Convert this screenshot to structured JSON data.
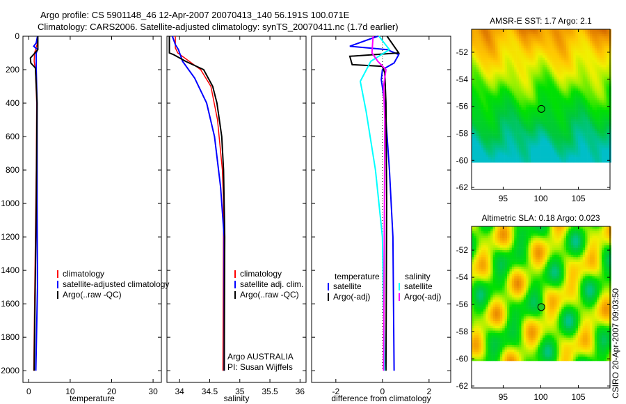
{
  "title": {
    "line1": "Argo profile: CS 5901148_46 12-Apr-2007 20070413_140 56.191S 100.071E",
    "line2": "Climatology: CARS2006. Satellite-adjusted climatology: synTS_20070411.nc (1.7d earlier)"
  },
  "footer_stamp": "CSIRO 20-Apr-2007 09:03:50",
  "chart_data": [
    {
      "type": "line",
      "id": "temperature",
      "xlabel": "temperature",
      "ylabel": "",
      "xlim": [
        -1.4,
        32
      ],
      "ylim": [
        0,
        2070
      ],
      "y_reversed": true,
      "xticks": [
        0,
        10,
        20,
        30
      ],
      "yticks": [
        0,
        200,
        400,
        600,
        800,
        1000,
        1200,
        1400,
        1600,
        1800,
        2000
      ],
      "legend": [
        "climatology",
        "satellite-adjusted climatology",
        "Argo(..raw -QC)"
      ],
      "series": [
        {
          "name": "climatology",
          "color": "#ff0000",
          "depth": [
            0,
            50,
            100,
            150,
            200,
            400,
            800,
            1200,
            1600,
            2000
          ],
          "values": [
            2.1,
            2.0,
            1.4,
            1.3,
            1.6,
            1.9,
            1.8,
            1.6,
            1.4,
            1.2
          ]
        },
        {
          "name": "satellite-adjusted climatology",
          "color": "#0000ff",
          "depth": [
            0,
            40,
            60,
            80,
            100,
            200,
            400,
            1000,
            1500,
            2000
          ],
          "values": [
            2.1,
            1.8,
            1.2,
            2.1,
            1.8,
            1.8,
            2.0,
            2.0,
            2.1,
            1.7
          ]
        },
        {
          "name": "Argo(..raw -QC)",
          "color": "#000000",
          "depth": [
            0,
            80,
            100,
            130,
            160,
            190,
            400,
            1000,
            1600,
            2000
          ],
          "values": [
            2.2,
            2.2,
            1.5,
            0.4,
            0.5,
            1.6,
            2.0,
            1.8,
            1.5,
            1.3
          ]
        }
      ]
    },
    {
      "type": "line",
      "id": "salinity",
      "xlabel": "salinity",
      "xlim": [
        33.79,
        36.1
      ],
      "ylim": [
        0,
        2070
      ],
      "y_reversed": true,
      "xticks": [
        34,
        34.5,
        35,
        35.5,
        36
      ],
      "legend": [
        "climatology",
        "satellite adj. clim.",
        "Argo(..raw -QC)"
      ],
      "annotation": [
        "Argo AUSTRALIA",
        "PI: Susan Wijffels"
      ],
      "series": [
        {
          "name": "climatology",
          "color": "#ff0000",
          "depth": [
            0,
            70,
            100,
            200,
            300,
            500,
            800,
            1000,
            2000
          ],
          "values": [
            33.93,
            33.93,
            33.97,
            34.35,
            34.52,
            34.63,
            34.71,
            34.73,
            34.72
          ]
        },
        {
          "name": "satellite adj. clim.",
          "color": "#0000ff",
          "depth": [
            0,
            50,
            80,
            150,
            250,
            400,
            600,
            900,
            1200,
            2000
          ],
          "values": [
            33.88,
            33.93,
            33.98,
            34.05,
            34.25,
            34.45,
            34.58,
            34.68,
            34.74,
            34.74
          ]
        },
        {
          "name": "Argo(..raw -QC)",
          "color": "#000000",
          "depth": [
            0,
            100,
            110,
            150,
            200,
            300,
            400,
            600,
            800,
            1200,
            2000
          ],
          "values": [
            33.83,
            33.83,
            33.9,
            34.1,
            34.4,
            34.55,
            34.62,
            34.7,
            34.73,
            34.75,
            34.74
          ]
        }
      ]
    },
    {
      "type": "line",
      "id": "difference",
      "xlabel": "difference from climatology",
      "xlim": [
        -3.04,
        2.93
      ],
      "ylim": [
        0,
        2070
      ],
      "y_reversed": true,
      "xticks": [
        -2,
        0,
        2
      ],
      "legend_groups": [
        {
          "heading": "temperature",
          "items": [
            "satellite",
            "Argo(-adj)"
          ]
        },
        {
          "heading": "salinity",
          "items": [
            "satellite",
            "Argo(-adj)"
          ]
        }
      ],
      "series": [
        {
          "name": "temperature satellite",
          "color": "#0000ff",
          "depth": [
            0,
            60,
            80,
            110,
            160,
            200,
            260,
            400,
            800,
            1200,
            2000
          ],
          "values": [
            -0.2,
            -1.4,
            0.2,
            0.7,
            0.5,
            0.0,
            -0.05,
            0.1,
            0.3,
            0.45,
            0.5
          ]
        },
        {
          "name": "temperature Argo(-adj)",
          "color": "#000000",
          "depth": [
            0,
            100,
            120,
            170,
            180,
            220,
            400,
            1000,
            2000
          ],
          "values": [
            0.2,
            0.7,
            -1.4,
            -1.3,
            0.0,
            0.1,
            0.15,
            0.18,
            0.15
          ]
        },
        {
          "name": "salinity satellite",
          "color": "#00ffff",
          "depth": [
            0,
            80,
            150,
            270,
            450,
            800,
            1200,
            2000
          ],
          "values": [
            -0.15,
            0.3,
            -0.5,
            -0.95,
            -0.7,
            -0.3,
            0.0,
            0.1
          ]
        },
        {
          "name": "salinity Argo(-adj)",
          "color": "#ff00ff",
          "depth": [
            0,
            100,
            150,
            200,
            300,
            500,
            1200,
            2000
          ],
          "values": [
            -0.4,
            -0.45,
            -0.2,
            0.15,
            0.05,
            0.1,
            0.08,
            0.05
          ]
        }
      ]
    },
    {
      "type": "heatmap",
      "id": "sst-map",
      "title": "AMSR-E SST: 1.7 Argo: 2.1",
      "xlim": [
        90.8,
        109.2
      ],
      "ylim": [
        -62.15,
        -50.3
      ],
      "data_lat_min": -60.15,
      "xticks": [
        95,
        100,
        105
      ],
      "yticks": [
        -52,
        -54,
        -56,
        -58,
        -60,
        -62
      ],
      "marker": {
        "lon": 100.071,
        "lat": -56.191,
        "filled": false
      }
    },
    {
      "type": "heatmap",
      "id": "sla-map",
      "title": "Altimetric SLA: 0.18 Argo: 0.023",
      "xlim": [
        90.8,
        109.2
      ],
      "ylim": [
        -62.15,
        -50.25
      ],
      "data_lat_min": -60.15,
      "xticks": [
        95,
        100,
        105
      ],
      "yticks": [
        -52,
        -54,
        -56,
        -58,
        -60,
        -62
      ],
      "marker": {
        "lon": 100.071,
        "lat": -56.191,
        "filled": true
      }
    }
  ]
}
